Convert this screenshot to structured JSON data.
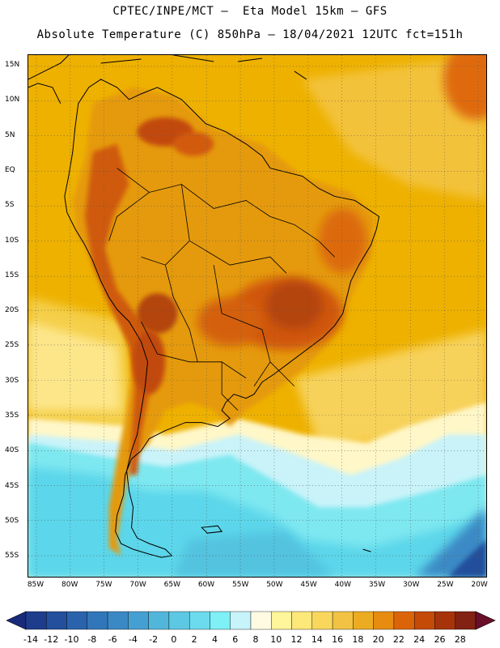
{
  "header": {
    "line1": "CPTEC/INPE/MCT –  Eta Model 15km – GFS",
    "line2": "Absolute Temperature (C) 850hPa – 18/04/2021 12UTC fct=151h"
  },
  "map": {
    "lat_labels": [
      "15N",
      "10N",
      "5N",
      "EQ",
      "5S",
      "10S",
      "15S",
      "20S",
      "25S",
      "30S",
      "35S",
      "40S",
      "45S",
      "50S",
      "55S"
    ],
    "lon_labels": [
      "85W",
      "80W",
      "75W",
      "70W",
      "65W",
      "60W",
      "55W",
      "50W",
      "45W",
      "40W",
      "35W",
      "30W",
      "25W",
      "20W"
    ],
    "colors": {
      "ocean_warm": "#f0b400",
      "land_hot": "#d25a0a",
      "land_very_hot": "#b4440c",
      "cool_water": "#fde05a",
      "cold_1": "#5cd6ea",
      "cold_2": "#7ee8f0"
    }
  },
  "colorbar": {
    "labels": [
      "-14",
      "-12",
      "-10",
      "-8",
      "-6",
      "-4",
      "-2",
      "0",
      "2",
      "4",
      "6",
      "8",
      "10",
      "12",
      "14",
      "16",
      "18",
      "20",
      "22",
      "24",
      "26",
      "28"
    ],
    "colors": [
      "#1d3c8c",
      "#234f9c",
      "#2a63ab",
      "#3176b9",
      "#3a89c5",
      "#45a0d2",
      "#52b6db",
      "#5cc8e4",
      "#6cdbee",
      "#7ef0f6",
      "#c7f3fa",
      "#fffbe3",
      "#fff59b",
      "#fde87a",
      "#f8d75c",
      "#f1c244",
      "#ecac22",
      "#e78c10",
      "#dc6408",
      "#c44a08",
      "#a6330a",
      "#822212"
    ]
  }
}
